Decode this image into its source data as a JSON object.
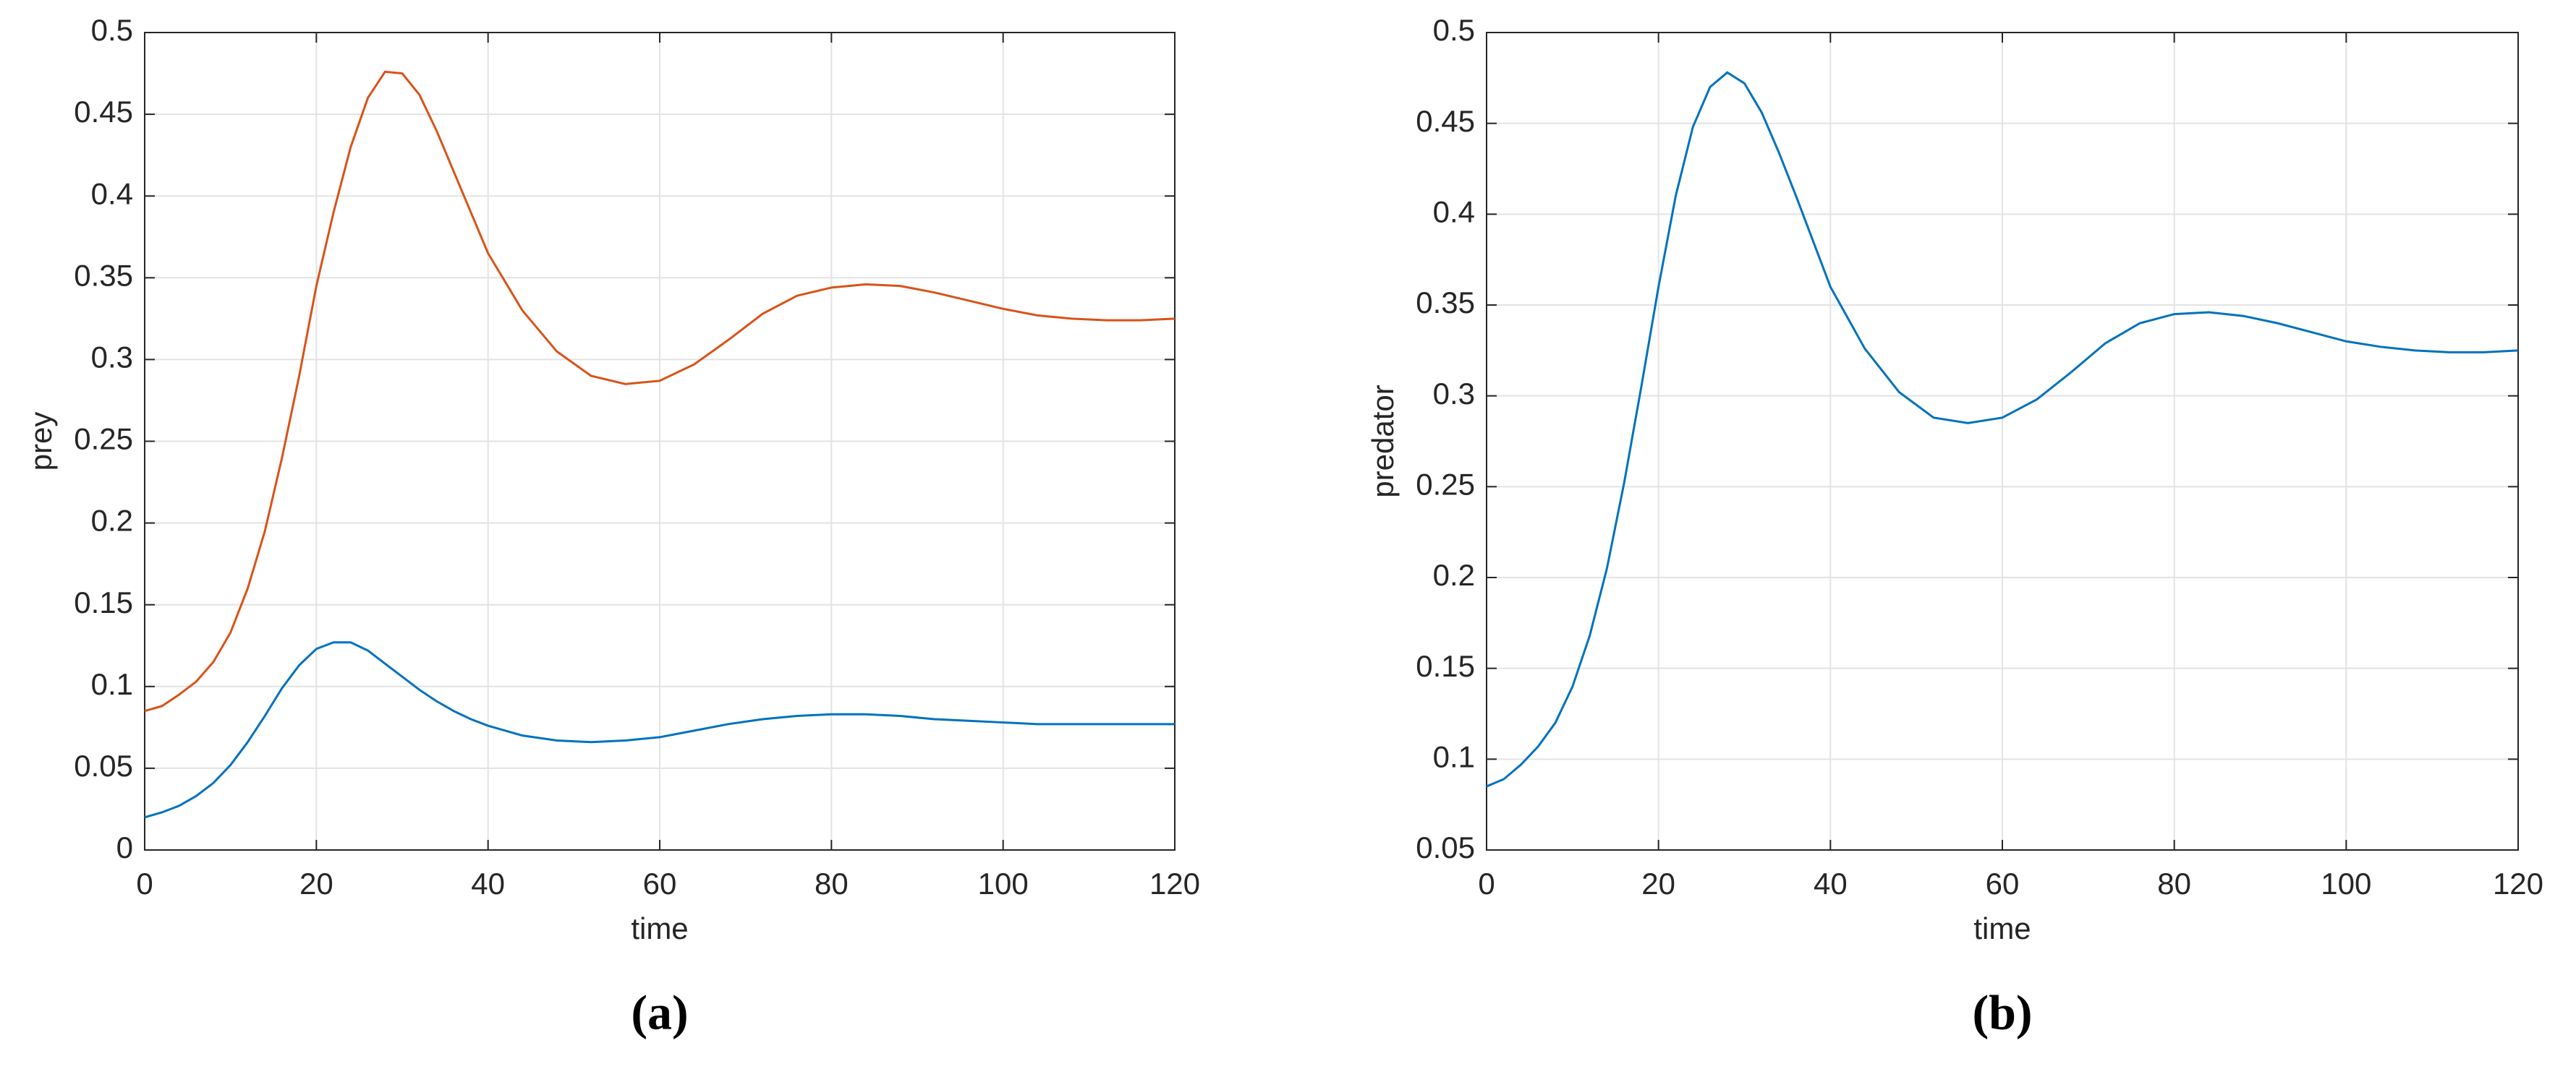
{
  "chart_data": [
    {
      "type": "line",
      "caption": "(a)",
      "x_label": "time",
      "y_label": "prey",
      "x": [
        0,
        2,
        4,
        6,
        8,
        10,
        12,
        14,
        16,
        18,
        20,
        22,
        24,
        26,
        28,
        30,
        32,
        34,
        36,
        38,
        40,
        44,
        48,
        52,
        56,
        60,
        64,
        68,
        72,
        76,
        80,
        84,
        88,
        92,
        96,
        100,
        104,
        108,
        112,
        116,
        120
      ],
      "series": [
        {
          "color": "#d95319",
          "values": [
            0.085,
            0.088,
            0.095,
            0.103,
            0.115,
            0.133,
            0.16,
            0.195,
            0.24,
            0.29,
            0.345,
            0.39,
            0.43,
            0.46,
            0.476,
            0.475,
            0.462,
            0.44,
            0.415,
            0.39,
            0.365,
            0.33,
            0.305,
            0.29,
            0.285,
            0.287,
            0.297,
            0.312,
            0.328,
            0.339,
            0.344,
            0.346,
            0.345,
            0.341,
            0.336,
            0.331,
            0.327,
            0.325,
            0.324,
            0.324,
            0.325
          ]
        },
        {
          "color": "#0072bd",
          "values": [
            0.02,
            0.023,
            0.027,
            0.033,
            0.041,
            0.052,
            0.066,
            0.082,
            0.099,
            0.113,
            0.123,
            0.127,
            0.127,
            0.122,
            0.114,
            0.106,
            0.098,
            0.091,
            0.085,
            0.08,
            0.076,
            0.07,
            0.067,
            0.066,
            0.067,
            0.069,
            0.073,
            0.077,
            0.08,
            0.082,
            0.083,
            0.083,
            0.082,
            0.08,
            0.079,
            0.078,
            0.077,
            0.077,
            0.077,
            0.077,
            0.077
          ]
        }
      ],
      "xlim": [
        0,
        120
      ],
      "xticks": [
        0,
        20,
        40,
        60,
        80,
        100,
        120
      ],
      "ylim": [
        0,
        0.5
      ],
      "yticks": [
        0,
        0.05,
        0.1,
        0.15,
        0.2,
        0.25,
        0.3,
        0.35,
        0.4,
        0.45,
        0.5
      ],
      "grid": true
    },
    {
      "type": "line",
      "caption": "(b)",
      "x_label": "time",
      "y_label": "predator",
      "x": [
        0,
        2,
        4,
        6,
        8,
        10,
        12,
        14,
        16,
        18,
        20,
        22,
        24,
        26,
        28,
        30,
        32,
        34,
        36,
        38,
        40,
        44,
        48,
        52,
        56,
        60,
        64,
        68,
        72,
        76,
        80,
        84,
        88,
        92,
        96,
        100,
        104,
        108,
        112,
        116,
        120
      ],
      "series": [
        {
          "color": "#0072bd",
          "values": [
            0.085,
            0.089,
            0.097,
            0.107,
            0.12,
            0.14,
            0.168,
            0.205,
            0.252,
            0.305,
            0.36,
            0.41,
            0.448,
            0.47,
            0.478,
            0.472,
            0.456,
            0.434,
            0.41,
            0.385,
            0.36,
            0.326,
            0.302,
            0.288,
            0.285,
            0.288,
            0.298,
            0.313,
            0.329,
            0.34,
            0.345,
            0.346,
            0.344,
            0.34,
            0.335,
            0.33,
            0.327,
            0.325,
            0.324,
            0.324,
            0.325
          ]
        }
      ],
      "xlim": [
        0,
        120
      ],
      "xticks": [
        0,
        20,
        40,
        60,
        80,
        100,
        120
      ],
      "ylim": [
        0.05,
        0.5
      ],
      "yticks": [
        0.05,
        0.1,
        0.15,
        0.2,
        0.25,
        0.3,
        0.35,
        0.4,
        0.45,
        0.5
      ],
      "grid": true
    }
  ]
}
